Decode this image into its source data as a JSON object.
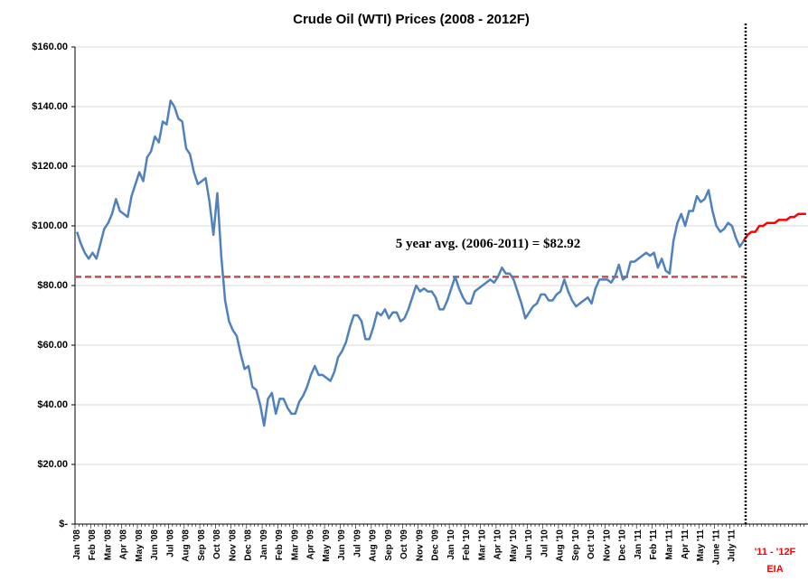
{
  "chart_data": {
    "type": "line",
    "title": "Crude Oil (WTI) Prices (2008 - 2012F)",
    "categories": [
      "Jan '08",
      null,
      null,
      null,
      "Feb '08",
      null,
      null,
      null,
      "Mar '08",
      null,
      null,
      null,
      "Apr '08",
      null,
      null,
      null,
      "May '08",
      null,
      null,
      null,
      "Jun '08",
      null,
      null,
      null,
      "Jul '08",
      null,
      null,
      null,
      "Aug '08",
      null,
      null,
      null,
      "Sep '08",
      null,
      null,
      null,
      "Oct '08",
      null,
      null,
      null,
      "Nov '08",
      null,
      null,
      null,
      "Dec '08",
      null,
      null,
      null,
      "Jan '09",
      null,
      null,
      null,
      "Feb '09",
      null,
      null,
      null,
      "Mar '09",
      null,
      null,
      null,
      "Apr '09",
      null,
      null,
      null,
      "May '09",
      null,
      null,
      null,
      "Jun '09",
      null,
      null,
      null,
      "Jul '09",
      null,
      null,
      null,
      "Aug '09",
      null,
      null,
      null,
      "Sep '09",
      null,
      null,
      null,
      "Oct '09",
      null,
      null,
      null,
      "Nov '09",
      null,
      null,
      null,
      "Dec '09",
      null,
      null,
      null,
      "Jan '10",
      null,
      null,
      null,
      "Feb '10",
      null,
      null,
      null,
      "Mar '10",
      null,
      null,
      null,
      "Apr '10",
      null,
      null,
      null,
      "May '10",
      null,
      null,
      null,
      "Jun '10",
      null,
      null,
      null,
      "Jul '10",
      null,
      null,
      null,
      "Aug '10",
      null,
      null,
      null,
      "Sep '10",
      null,
      null,
      null,
      "Oct '10",
      null,
      null,
      null,
      "Nov '10",
      null,
      null,
      null,
      "Dec '10",
      null,
      null,
      null,
      "Jan '11",
      null,
      null,
      null,
      "Feb '11",
      null,
      null,
      null,
      "Mar '11",
      null,
      null,
      null,
      "Apr '11",
      null,
      null,
      null,
      "May '11",
      null,
      null,
      null,
      "June '11",
      null,
      null,
      null,
      "July '11",
      null,
      null,
      null,
      null,
      null,
      null,
      null,
      null,
      null,
      null,
      null,
      null,
      null,
      null,
      null,
      null,
      null,
      null,
      null
    ],
    "series": [
      {
        "color": "#4f81bd",
        "values": [
          98,
          94,
          91,
          89,
          91,
          89,
          94,
          99,
          101,
          104,
          109,
          105,
          104,
          103,
          110,
          114,
          118,
          115,
          123,
          125,
          130,
          128,
          135,
          134,
          142,
          140,
          136,
          135,
          126,
          124,
          118,
          114,
          115,
          116,
          108,
          97,
          111,
          90,
          75,
          68,
          65,
          63,
          57,
          52,
          53,
          46,
          45,
          40,
          33,
          42,
          44,
          37,
          42,
          42,
          39,
          37,
          37,
          41,
          43,
          46,
          50,
          53,
          50,
          50,
          49,
          48,
          51,
          56,
          58,
          61,
          66,
          70,
          70,
          68,
          62,
          62,
          66,
          71,
          70,
          72,
          69,
          71,
          71,
          68,
          69,
          72,
          76,
          80,
          78,
          79,
          78,
          78,
          76,
          72,
          72,
          75,
          79,
          83,
          79,
          76,
          74,
          74,
          78,
          79,
          80,
          81,
          82,
          81,
          83,
          86,
          84,
          84,
          82,
          78,
          74,
          69,
          71,
          73,
          74,
          77,
          77,
          75,
          75,
          77,
          78,
          82,
          78,
          75,
          73,
          74,
          75,
          76,
          74,
          79,
          82,
          82,
          82,
          81,
          83,
          87,
          82,
          83,
          88,
          88,
          89,
          90,
          91,
          90,
          91,
          86,
          89,
          85,
          84,
          95,
          101,
          104,
          100,
          105,
          105,
          110,
          108,
          109,
          112,
          105,
          100,
          98,
          99,
          101,
          100,
          96,
          93,
          95,
          null,
          null,
          null,
          null,
          null,
          null,
          null,
          null,
          null,
          null,
          null,
          null,
          null,
          null,
          null,
          null
        ]
      },
      {
        "color": "#ff0000",
        "values": [
          null,
          null,
          null,
          null,
          null,
          null,
          null,
          null,
          null,
          null,
          null,
          null,
          null,
          null,
          null,
          null,
          null,
          null,
          null,
          null,
          null,
          null,
          null,
          null,
          null,
          null,
          null,
          null,
          null,
          null,
          null,
          null,
          null,
          null,
          null,
          null,
          null,
          null,
          null,
          null,
          null,
          null,
          null,
          null,
          null,
          null,
          null,
          null,
          null,
          null,
          null,
          null,
          null,
          null,
          null,
          null,
          null,
          null,
          null,
          null,
          null,
          null,
          null,
          null,
          null,
          null,
          null,
          null,
          null,
          null,
          null,
          null,
          null,
          null,
          null,
          null,
          null,
          null,
          null,
          null,
          null,
          null,
          null,
          null,
          null,
          null,
          null,
          null,
          null,
          null,
          null,
          null,
          null,
          null,
          null,
          null,
          null,
          null,
          null,
          null,
          null,
          null,
          null,
          null,
          null,
          null,
          null,
          null,
          null,
          null,
          null,
          null,
          null,
          null,
          null,
          null,
          null,
          null,
          null,
          null,
          null,
          null,
          null,
          null,
          null,
          null,
          null,
          null,
          null,
          null,
          null,
          null,
          null,
          null,
          null,
          null,
          null,
          null,
          null,
          null,
          null,
          null,
          null,
          null,
          null,
          null,
          null,
          null,
          null,
          null,
          null,
          null,
          null,
          null,
          null,
          null,
          null,
          null,
          null,
          null,
          null,
          null,
          null,
          null,
          null,
          null,
          null,
          null,
          null,
          null,
          null,
          95,
          97,
          98,
          98,
          100,
          100,
          101,
          101,
          101,
          102,
          102,
          102,
          103,
          103,
          104,
          104,
          104
        ]
      }
    ],
    "reference_line": {
      "value": 82.92,
      "label": "5 year avg. (2006-2011) = $82.92",
      "color": "#c0504d"
    },
    "forecast_label": [
      "'11 - '12F",
      "EIA"
    ],
    "ylim": [
      0,
      160
    ],
    "yticks": [
      {
        "value": 0,
        "label": "$-"
      },
      {
        "value": 20,
        "label": "$20.00"
      },
      {
        "value": 40,
        "label": "$40.00"
      },
      {
        "value": 60,
        "label": "$60.00"
      },
      {
        "value": 80,
        "label": "$80.00"
      },
      {
        "value": 100,
        "label": "$100.00"
      },
      {
        "value": 120,
        "label": "$120.00"
      },
      {
        "value": 140,
        "label": "$140.00"
      },
      {
        "value": 160,
        "label": "$160.00"
      }
    ],
    "grid": true
  }
}
